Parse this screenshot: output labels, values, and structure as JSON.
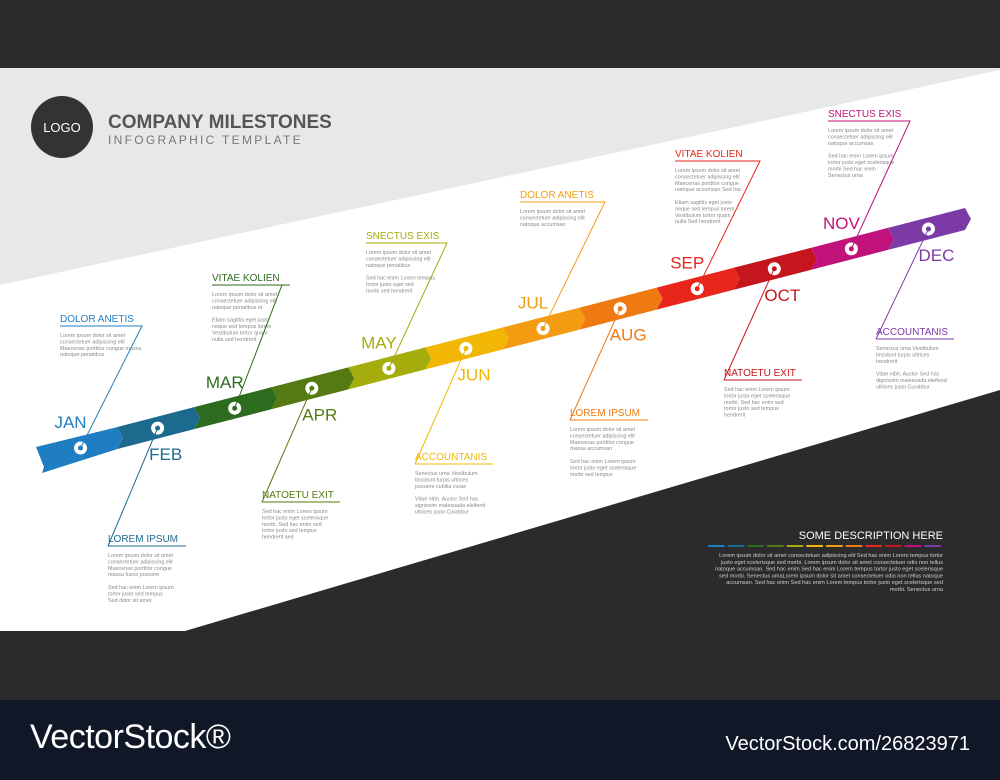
{
  "header": {
    "logo_text": "LOGO",
    "title": "COMPANY MILESTONES",
    "subtitle": "INFOGRAPHIC TEMPLATE"
  },
  "months": [
    {
      "label": "JAN",
      "color": "#1f7ec2"
    },
    {
      "label": "FEB",
      "color": "#1d6a8f"
    },
    {
      "label": "MAR",
      "color": "#2d6b1f"
    },
    {
      "label": "APR",
      "color": "#557a12"
    },
    {
      "label": "MAY",
      "color": "#a4ad0b"
    },
    {
      "label": "JUN",
      "color": "#f2b705"
    },
    {
      "label": "JUL",
      "color": "#f39c12"
    },
    {
      "label": "AUG",
      "color": "#f07a12"
    },
    {
      "label": "SEP",
      "color": "#e8261b"
    },
    {
      "label": "OCT",
      "color": "#c4161c"
    },
    {
      "label": "NOV",
      "color": "#c0127a"
    },
    {
      "label": "DEC",
      "color": "#7b3aa6"
    }
  ],
  "milestones": [
    {
      "title": "DOLOR ANETIS",
      "lines": [
        "Lorem ipsum dolor sit amet",
        "consectetuer adipiscing elit",
        "Maecenas porttitor congue massa",
        "natoque penatibus"
      ]
    },
    {
      "title": "LOREM IPSUM",
      "lines": [
        "Lorem ipsum dolor sit amet",
        "consectetuer adipiscing elit",
        "Maecenas porttitor congue",
        "massa fusce posuere",
        "",
        "Sed hac enim Lorem ipsum",
        "tortor justo sed tempus",
        "Sed dolor sit amet"
      ]
    },
    {
      "title": "VITAE KOLIEN",
      "lines": [
        "Lorem ipsum dolor sit amet",
        "consectetuer adipiscing elit",
        "natoque penatibus et",
        "",
        "Etiam sagittis eget justo",
        "neque sed tempus lorem",
        "Vestibulum tortor quam",
        "nulla sed hendrerit"
      ]
    },
    {
      "title": "NATOETU EXIT",
      "lines": [
        "Sed hac enim Lorem ipsum",
        "tortor justo eget scelerisque",
        "morbi. Sed hac enim sed",
        "tortor justo sed tempus",
        "hendrerit sed"
      ]
    },
    {
      "title": "SNECTUS EXIS",
      "lines": [
        "Lorem ipsum dolor sit amet",
        "consectetuer adipiscing elit",
        "natoque penatibus",
        "",
        "Sed hac enim Lorem tempus",
        "tortor justo eget sed",
        "morbi sed hendrerit"
      ]
    },
    {
      "title": "ACCOUNTANIS",
      "lines": [
        "Senectus urna Vestibulum",
        "tincidunt turpis ultrices",
        "posuere cubilia curae",
        "",
        "Vitae nibh. Auctor Sed hac",
        "signissim malesuada eleifend",
        "ultrices justo Curabitur"
      ]
    },
    {
      "title": "DOLOR ANETIS",
      "lines": [
        "Lorem ipsum dolor sit amet",
        "consectetuer adipiscing elit",
        "natoque accumsan"
      ]
    },
    {
      "title": "LOREM IPSUM",
      "lines": [
        "Lorem ipsum dolor sit amet",
        "consectetuer adipiscing elit",
        "Maecenas porttitor congue",
        "massa accumsan",
        "",
        "Sed hac enim Lorem ipsum",
        "tortor justo eget scelerisque",
        "morbi sed tempus"
      ]
    },
    {
      "title": "VITAE KOLIEN",
      "lines": [
        "Lorem ipsum dolor sit amet",
        "consectetuer adipiscing elit",
        "Maecenas porttitor congue",
        "natoque accumsan Sed hac",
        "",
        "Etiam sagittis eget justo",
        "neque sed tempus lorem",
        "Vestibulum tortor quam",
        "nulla Sed hendrerit"
      ]
    },
    {
      "title": "NATOETU EXIT",
      "lines": [
        "Sed hac enim Lorem ipsum",
        "tortor justo eget scelerisque",
        "morbi. Sed hac enim sed",
        "tortor justo sed tempus",
        "hendrerit"
      ]
    },
    {
      "title": "SNECTUS EXIS",
      "lines": [
        "Lorem ipsum dolor sit amet",
        "consectetuer adipiscing elit",
        "natoque accumsan",
        "",
        "Sed hac enim Lorem ipsum",
        "tortor justo eget scelerisque",
        "morbi Sed hac enim",
        "Senectus urna"
      ]
    },
    {
      "title": "ACCOUNTANIS",
      "lines": [
        "Senectus urna Vestibulum",
        "tincidunt turpis ultrices",
        "hendrerit",
        "",
        "Vitae nibh. Auctor Sed hac",
        "dignissim malesuada eleifend",
        "ultrices justo Curabitur"
      ]
    }
  ],
  "description": {
    "title": "SOME DESCRIPTION HERE",
    "lines": [
      "Lorem ipsum dolor sit amet consectetuer adipiscing elit Sed hac enim Lorem tempus tortor",
      "justo eget scelerisque sed morbi. Lorem ipsum dolor sit amet consectetuer odio non tellus",
      "natoque accumsan. Sed hac enim Sed hac enim Lorem tempus tortor justo eget scelerisque",
      "sed morbi. Senectus umaLorem ipsum dolor sit amet consectetuer odio non tellus natoque",
      "accumsan. Sed hac enim Sed hac enim Lorem tempus tortor justo eget scelerisque sed",
      "morbi. Senectus urna"
    ]
  },
  "watermark": {
    "brand": "VectorStock®",
    "id": "VectorStock.com/26823971"
  }
}
